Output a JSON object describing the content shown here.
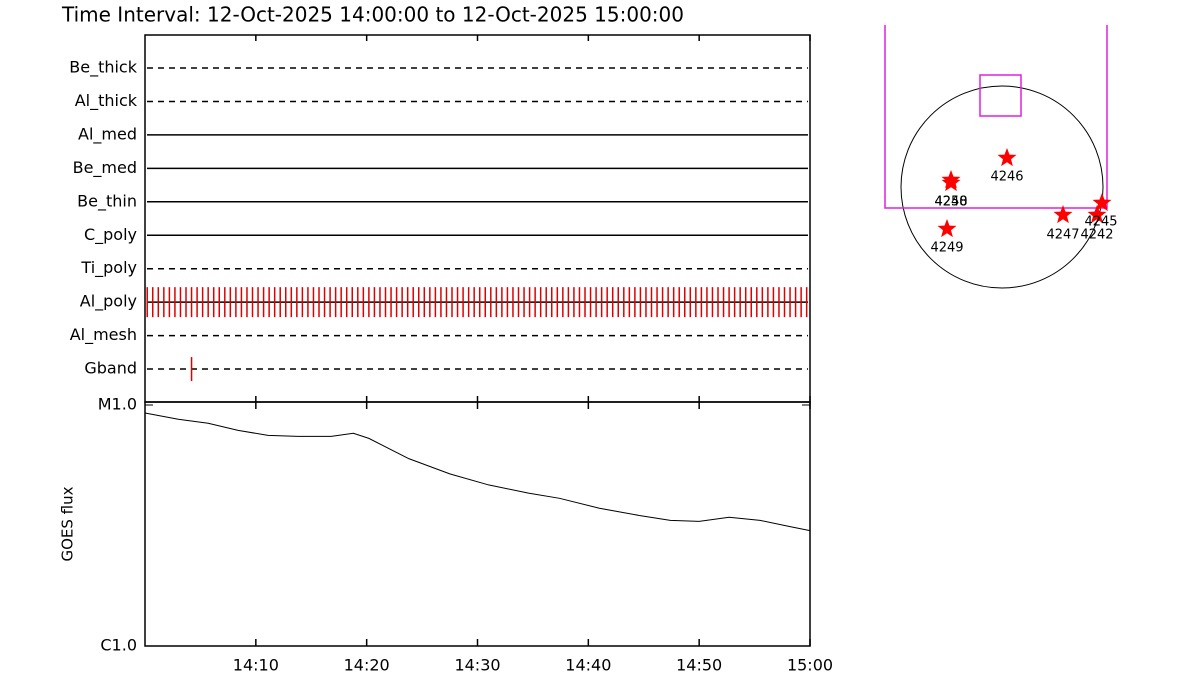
{
  "chart_data": [
    {
      "type": "timeline",
      "title": "Time Interval: 12-Oct-2025 14:00:00 to 12-Oct-2025 15:00:00",
      "xlim": [
        0,
        60
      ],
      "xticks": [
        {
          "value": 10,
          "label": "14:10"
        },
        {
          "value": 20,
          "label": "14:20"
        },
        {
          "value": 30,
          "label": "14:30"
        },
        {
          "value": 40,
          "label": "14:40"
        },
        {
          "value": 50,
          "label": "14:50"
        },
        {
          "value": 60,
          "label": "15:00"
        }
      ],
      "color": "#e00000",
      "filters": [
        {
          "name": "Be_thick",
          "style": "dashed",
          "times": []
        },
        {
          "name": "Al_thick",
          "style": "dashed",
          "times": []
        },
        {
          "name": "Al_med",
          "style": "solid",
          "times": []
        },
        {
          "name": "Be_med",
          "style": "solid",
          "times": []
        },
        {
          "name": "Be_thin",
          "style": "solid",
          "times": []
        },
        {
          "name": "C_poly",
          "style": "solid",
          "times": []
        },
        {
          "name": "Ti_poly",
          "style": "dashed",
          "times": []
        },
        {
          "name": "Al_poly",
          "style": "solid",
          "times": [
            0.2,
            0.7,
            1.2,
            1.7,
            2.2,
            2.7,
            3.2,
            3.7,
            4.2,
            4.7,
            5.2,
            5.7,
            6.2,
            6.7,
            7.2,
            7.7,
            8.2,
            8.7,
            9.2,
            9.7,
            10.2,
            10.7,
            11.2,
            11.7,
            12.2,
            12.7,
            13.2,
            13.7,
            14.2,
            14.7,
            15.2,
            15.7,
            16.2,
            16.7,
            17.2,
            17.7,
            18.2,
            18.7,
            19.2,
            19.7,
            20.2,
            20.7,
            21.2,
            21.7,
            22.2,
            22.7,
            23.2,
            23.7,
            24.2,
            24.7,
            25.2,
            25.7,
            26.2,
            26.7,
            27.2,
            27.7,
            28.2,
            28.7,
            29.2,
            29.7,
            30.2,
            30.7,
            31.2,
            31.7,
            32.2,
            32.7,
            33.2,
            33.7,
            34.2,
            34.7,
            35.2,
            35.7,
            36.2,
            36.7,
            37.2,
            37.7,
            38.2,
            38.7,
            39.2,
            39.7,
            40.2,
            40.7,
            41.2,
            41.7,
            42.2,
            42.7,
            43.2,
            43.7,
            44.2,
            44.7,
            45.2,
            45.7,
            46.2,
            46.7,
            47.2,
            47.7,
            48.2,
            48.7,
            49.2,
            49.7,
            50.2,
            50.7,
            51.2,
            51.7,
            52.2,
            52.7,
            53.2,
            53.7,
            54.2,
            54.7,
            55.2,
            55.7,
            56.2,
            56.7,
            57.2,
            57.7,
            58.2,
            58.7,
            59.2,
            59.7
          ]
        },
        {
          "name": "Al_mesh",
          "style": "dashed",
          "times": []
        },
        {
          "name": "Gband",
          "style": "dashed",
          "times": [
            4.2
          ]
        }
      ]
    },
    {
      "type": "line",
      "ylabel": "GOES flux",
      "log": true,
      "xlim": [
        0,
        60
      ],
      "xticks": [
        {
          "value": 10,
          "label": "14:10"
        },
        {
          "value": 20,
          "label": "14:20"
        },
        {
          "value": 30,
          "label": "14:30"
        },
        {
          "value": 40,
          "label": "14:40"
        },
        {
          "value": 50,
          "label": "14:50"
        },
        {
          "value": 60,
          "label": "15:00"
        }
      ],
      "ylim": [
        1e-06,
        1e-05
      ],
      "yticks": [
        {
          "value": 1e-06,
          "label": "C1.0"
        },
        {
          "value": 1e-05,
          "label": "M1.0"
        }
      ],
      "x": [
        0,
        3.0,
        5.7,
        8.4,
        11.1,
        13.8,
        16.8,
        18.8,
        20.2,
        23.8,
        27.5,
        31.0,
        34.6,
        37.4,
        41.0,
        44.6,
        47.4,
        50.0,
        52.7,
        55.5,
        58.2,
        60
      ],
      "series": [
        {
          "color": "#000000",
          "values": [
            9.26e-06,
            8.73e-06,
            8.4e-06,
            7.85e-06,
            7.48e-06,
            7.41e-06,
            7.41e-06,
            7.63e-06,
            7.27e-06,
            5.99e-06,
            5.18e-06,
            4.66e-06,
            4.31e-06,
            4.1e-06,
            3.73e-06,
            3.48e-06,
            3.32e-06,
            3.29e-06,
            3.42e-06,
            3.32e-06,
            3.13e-06,
            3.01e-06
          ]
        }
      ]
    }
  ],
  "sun_map": {
    "regions": [
      "4246",
      "4248",
      "4250",
      "4249",
      "4247",
      "4242",
      "4245"
    ]
  }
}
